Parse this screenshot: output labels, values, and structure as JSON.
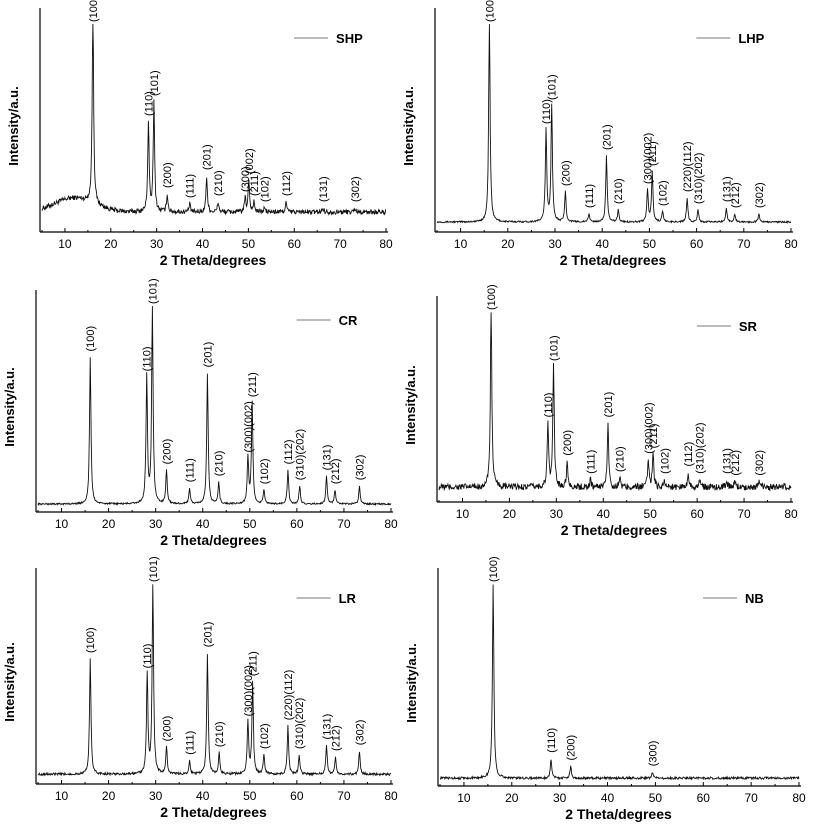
{
  "chart_data": [
    {
      "type": "line",
      "legend": "SHP",
      "xlabel": "2 Theta/degrees",
      "ylabel": "Intensity/a.u.",
      "xlim": [
        5,
        80
      ],
      "xticks": [
        10,
        20,
        30,
        40,
        50,
        60,
        70,
        80
      ],
      "baseline": 0.08,
      "noise": 0.012,
      "hump": 0.07,
      "peaks": [
        {
          "x": 16.1,
          "h": 1.0,
          "label": "(100)"
        },
        {
          "x": 28.2,
          "h": 0.45,
          "label": "(110)"
        },
        {
          "x": 29.4,
          "h": 0.55,
          "label": "(101)"
        },
        {
          "x": 32.3,
          "h": 0.09,
          "label": "(200)"
        },
        {
          "x": 37.2,
          "h": 0.04,
          "label": "(111)"
        },
        {
          "x": 40.9,
          "h": 0.18,
          "label": "(201)"
        },
        {
          "x": 43.4,
          "h": 0.05,
          "label": "(210)"
        },
        {
          "x": 49.3,
          "h": 0.07,
          "label": "(300)"
        },
        {
          "x": 50.1,
          "h": 0.16,
          "label": "(002)"
        },
        {
          "x": 51.2,
          "h": 0.05,
          "label": "(211)"
        },
        {
          "x": 53.5,
          "h": 0.02,
          "label": "(102)"
        },
        {
          "x": 58.2,
          "h": 0.05,
          "label": "(112)"
        },
        {
          "x": 66.3,
          "h": 0.02,
          "label": "(131)"
        },
        {
          "x": 73.2,
          "h": 0.02,
          "label": "(302)"
        }
      ]
    },
    {
      "type": "line",
      "legend": "LHP",
      "xlabel": "2 Theta/degrees",
      "ylabel": "Intensity/a.u.",
      "xlim": [
        5,
        80
      ],
      "xticks": [
        10,
        20,
        30,
        40,
        50,
        60,
        70,
        80
      ],
      "baseline": 0.03,
      "noise": 0.004,
      "hump": 0.0,
      "peaks": [
        {
          "x": 16.1,
          "h": 1.0,
          "label": "(100)"
        },
        {
          "x": 28.1,
          "h": 0.46,
          "label": "(110)"
        },
        {
          "x": 29.3,
          "h": 0.58,
          "label": "(101)"
        },
        {
          "x": 32.2,
          "h": 0.15,
          "label": "(200)"
        },
        {
          "x": 37.2,
          "h": 0.04,
          "label": "(111)"
        },
        {
          "x": 40.9,
          "h": 0.33,
          "label": "(201)"
        },
        {
          "x": 43.4,
          "h": 0.06,
          "label": "(210)"
        },
        {
          "x": 49.6,
          "h": 0.16,
          "label": "(300)(002)"
        },
        {
          "x": 50.6,
          "h": 0.25,
          "label": "(211)"
        },
        {
          "x": 52.8,
          "h": 0.05,
          "label": "(102)"
        },
        {
          "x": 58.0,
          "h": 0.12,
          "label": "(220)(112)"
        },
        {
          "x": 60.3,
          "h": 0.06,
          "label": "(310)(202)"
        },
        {
          "x": 66.3,
          "h": 0.07,
          "label": "(131)"
        },
        {
          "x": 68.1,
          "h": 0.04,
          "label": "(212)"
        },
        {
          "x": 73.2,
          "h": 0.04,
          "label": "(302)"
        }
      ]
    },
    {
      "type": "line",
      "legend": "CR",
      "xlabel": "2 Theta/degrees",
      "ylabel": "Intensity/a.u.",
      "xlim": [
        5,
        80
      ],
      "xticks": [
        10,
        20,
        30,
        40,
        50,
        60,
        70,
        80
      ],
      "baseline": 0.02,
      "noise": 0.004,
      "hump": 0.0,
      "peaks": [
        {
          "x": 16.1,
          "h": 0.74,
          "label": "(100)"
        },
        {
          "x": 28.1,
          "h": 0.64,
          "label": "(110)"
        },
        {
          "x": 29.3,
          "h": 1.0,
          "label": "(101)"
        },
        {
          "x": 32.3,
          "h": 0.17,
          "label": "(200)"
        },
        {
          "x": 37.2,
          "h": 0.08,
          "label": "(111)"
        },
        {
          "x": 41.0,
          "h": 0.66,
          "label": "(201)"
        },
        {
          "x": 43.4,
          "h": 0.11,
          "label": "(210)"
        },
        {
          "x": 49.6,
          "h": 0.23,
          "label": "(300)(002)"
        },
        {
          "x": 50.5,
          "h": 0.51,
          "label": "(211)"
        },
        {
          "x": 53.0,
          "h": 0.07,
          "label": "(102)"
        },
        {
          "x": 58.1,
          "h": 0.17,
          "label": "(112)"
        },
        {
          "x": 60.6,
          "h": 0.09,
          "label": "(310)(202)"
        },
        {
          "x": 66.3,
          "h": 0.14,
          "label": "(131)"
        },
        {
          "x": 68.1,
          "h": 0.07,
          "label": "(212)"
        },
        {
          "x": 73.3,
          "h": 0.09,
          "label": "(302)"
        }
      ]
    },
    {
      "type": "line",
      "legend": "SR",
      "xlabel": "2 Theta/degrees",
      "ylabel": "Intensity/a.u.",
      "xlim": [
        5,
        80
      ],
      "xticks": [
        10,
        20,
        30,
        40,
        50,
        60,
        70,
        80
      ],
      "baseline": 0.06,
      "noise": 0.018,
      "hump": 0.0,
      "peaks": [
        {
          "x": 16.1,
          "h": 1.0,
          "label": "(100)"
        },
        {
          "x": 28.2,
          "h": 0.35,
          "label": "(110)"
        },
        {
          "x": 29.4,
          "h": 0.66,
          "label": "(101)"
        },
        {
          "x": 32.3,
          "h": 0.14,
          "label": "(200)"
        },
        {
          "x": 37.3,
          "h": 0.04,
          "label": "(111)"
        },
        {
          "x": 41.0,
          "h": 0.35,
          "label": "(201)"
        },
        {
          "x": 43.5,
          "h": 0.05,
          "label": "(210)"
        },
        {
          "x": 49.6,
          "h": 0.15,
          "label": "(300)(002)"
        },
        {
          "x": 50.6,
          "h": 0.18,
          "label": "(211)"
        },
        {
          "x": 53.0,
          "h": 0.04,
          "label": "(102)"
        },
        {
          "x": 58.1,
          "h": 0.08,
          "label": "(112)"
        },
        {
          "x": 60.5,
          "h": 0.04,
          "label": "(310)(202)"
        },
        {
          "x": 66.3,
          "h": 0.04,
          "label": "(131)"
        },
        {
          "x": 68.1,
          "h": 0.03,
          "label": "(212)"
        },
        {
          "x": 73.2,
          "h": 0.03,
          "label": "(302)"
        }
      ]
    },
    {
      "type": "line",
      "legend": "LR",
      "xlabel": "2 Theta/degrees",
      "ylabel": "Intensity/a.u.",
      "xlim": [
        5,
        80
      ],
      "xticks": [
        10,
        20,
        30,
        40,
        50,
        60,
        70,
        80
      ],
      "baseline": 0.03,
      "noise": 0.006,
      "hump": 0.0,
      "peaks": [
        {
          "x": 16.1,
          "h": 0.6,
          "label": "(100)"
        },
        {
          "x": 28.2,
          "h": 0.52,
          "label": "(110)"
        },
        {
          "x": 29.4,
          "h": 1.0,
          "label": "(101)"
        },
        {
          "x": 32.3,
          "h": 0.14,
          "label": "(200)"
        },
        {
          "x": 37.2,
          "h": 0.07,
          "label": "(111)"
        },
        {
          "x": 41.0,
          "h": 0.63,
          "label": "(201)"
        },
        {
          "x": 43.5,
          "h": 0.11,
          "label": "(210)"
        },
        {
          "x": 49.6,
          "h": 0.27,
          "label": "(300)(002)"
        },
        {
          "x": 50.6,
          "h": 0.48,
          "label": "(211)"
        },
        {
          "x": 53.0,
          "h": 0.1,
          "label": "(102)"
        },
        {
          "x": 58.1,
          "h": 0.25,
          "label": "(220)(112)"
        },
        {
          "x": 60.5,
          "h": 0.1,
          "label": "(310)(202)"
        },
        {
          "x": 66.3,
          "h": 0.15,
          "label": "(131)"
        },
        {
          "x": 68.2,
          "h": 0.09,
          "label": "(212)"
        },
        {
          "x": 73.3,
          "h": 0.12,
          "label": "(302)"
        }
      ]
    },
    {
      "type": "line",
      "legend": "NB",
      "xlabel": "2 Theta/degrees",
      "ylabel": "Intensity/a.u.",
      "xlim": [
        5,
        80
      ],
      "xticks": [
        10,
        20,
        30,
        40,
        50,
        60,
        70,
        80
      ],
      "baseline": 0.02,
      "noise": 0.006,
      "hump": 0.0,
      "peaks": [
        {
          "x": 16.1,
          "h": 1.0,
          "label": "(100)"
        },
        {
          "x": 28.2,
          "h": 0.1,
          "label": "(110)"
        },
        {
          "x": 32.3,
          "h": 0.06,
          "label": "(200)"
        },
        {
          "x": 49.4,
          "h": 0.03,
          "label": "(300)"
        }
      ]
    }
  ]
}
